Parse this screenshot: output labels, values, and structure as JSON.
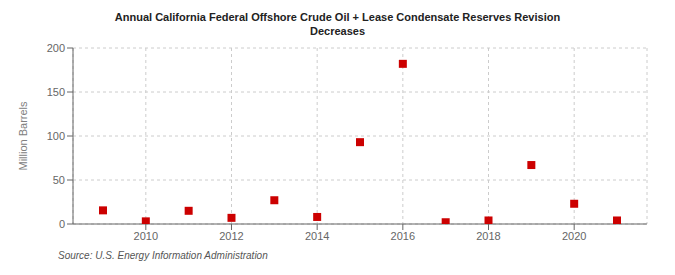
{
  "chart_data": {
    "type": "scatter",
    "title": "Annual California Federal Offshore Crude Oil + Lease Condensate Reserves Revision\nDecreases",
    "ylabel": "Million Barrels",
    "annotations": [
      "Source: U.S. Energy Information Administration"
    ],
    "x": [
      2009,
      2010,
      2011,
      2012,
      2013,
      2014,
      2015,
      2016,
      2017,
      2018,
      2019,
      2020,
      2021
    ],
    "values": [
      15.5,
      3.0,
      15.0,
      7.0,
      27.0,
      8.0,
      93.0,
      182.0,
      2.0,
      4.0,
      67.0,
      23.0,
      4.0
    ],
    "color": "#cc0000",
    "marker": "square",
    "xlim": [
      2008.3,
      2021.7
    ],
    "xticks": [
      2010,
      2012,
      2014,
      2016,
      2018,
      2020
    ],
    "ylim": [
      0,
      200
    ],
    "yticks": [
      0,
      50,
      100,
      150,
      200
    ],
    "grid": true
  }
}
